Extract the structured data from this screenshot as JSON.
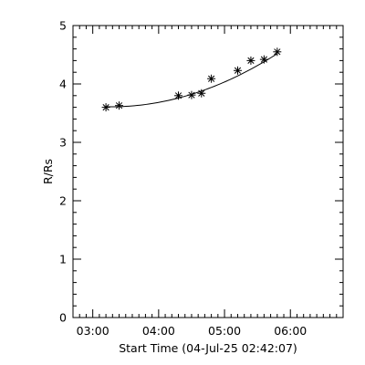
{
  "chart_data": {
    "type": "scatter",
    "title": "",
    "xlabel": "Start Time (04-Jul-25 02:42:07)",
    "ylabel": "R/Rs",
    "x_unit": "time (HH:MM)",
    "xlim": [
      "02:42",
      "06:48"
    ],
    "ylim": [
      0,
      5
    ],
    "x_ticks": [
      "03:00",
      "04:00",
      "05:00",
      "06:00"
    ],
    "y_ticks": [
      "0",
      "1",
      "2",
      "3",
      "4",
      "5"
    ],
    "marker": "asterisk",
    "grid": false,
    "series": [
      {
        "x": [
          "03:12",
          "03:24",
          "04:18",
          "04:30",
          "04:39",
          "04:48",
          "05:12",
          "05:24",
          "05:36",
          "05:48"
        ],
        "values": [
          3.6,
          3.63,
          3.8,
          3.81,
          3.84,
          4.09,
          4.23,
          4.4,
          4.42,
          4.55
        ]
      }
    ],
    "fit": {
      "type": "quadratic",
      "x": [
        "03:12",
        "03:30",
        "04:00",
        "04:30",
        "05:00",
        "05:30",
        "05:48"
      ],
      "values": [
        3.6,
        3.62,
        3.7,
        3.83,
        4.01,
        4.31,
        4.53
      ]
    }
  }
}
